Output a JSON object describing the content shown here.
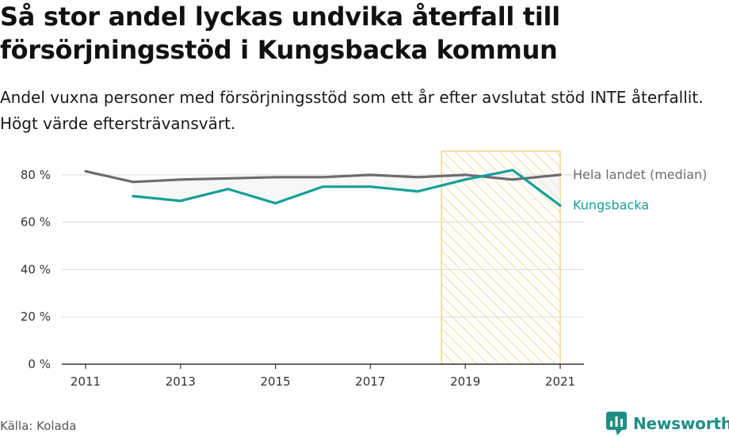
{
  "title": "Så stor andel lyckas undvika återfall till försörjningsstöd i Kungsbacka kommun",
  "subtitle": "Andel vuxna personer med försörjningsstöd som ett år efter avslutat stöd INTE återfallit. Högt värde eftersträvansvärt.",
  "source": "Källa: Kolada",
  "brand": "Newsworthy",
  "colors": {
    "national": "#6f6a72",
    "local": "#13a096",
    "highlight_stroke": "#f5c96a",
    "highlight_hatch": "#f3d27e",
    "axis": "#333333",
    "grid": "#d9d9d9",
    "text": "#333333",
    "brand": "#1f8f86"
  },
  "chart_data": {
    "type": "line",
    "x": [
      2011,
      2012,
      2013,
      2014,
      2015,
      2016,
      2017,
      2018,
      2019,
      2020,
      2021
    ],
    "series": [
      {
        "name": "Hela landet (median)",
        "values": [
          81.5,
          77,
          78,
          78.5,
          79,
          79,
          80,
          79,
          80,
          78,
          80
        ]
      },
      {
        "name": "Kungsbacka",
        "values": [
          null,
          71,
          69,
          74,
          68,
          75,
          75,
          73,
          78,
          82,
          67
        ]
      }
    ],
    "xticks": [
      2011,
      2013,
      2015,
      2017,
      2019,
      2021
    ],
    "xtick_labels": [
      "2011",
      "2013",
      "2015",
      "2017",
      "2019",
      "2021"
    ],
    "yticks": [
      0,
      20,
      40,
      60,
      80
    ],
    "ytick_labels": [
      "0 %",
      "20 %",
      "40 %",
      "60 %",
      "80 %"
    ],
    "xlim": [
      2010.7,
      2021.5
    ],
    "ylim": [
      0,
      95
    ],
    "highlight_range": [
      2018.5,
      2021
    ],
    "grid": "horizontal",
    "legend": "direct labels at line ends"
  }
}
